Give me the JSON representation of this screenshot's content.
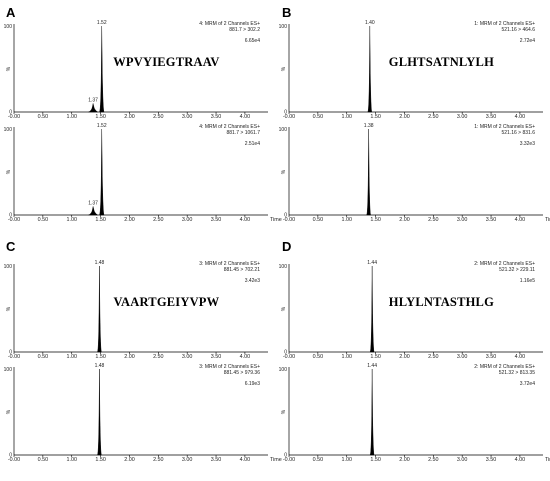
{
  "chart_data": [
    {
      "panel": "A",
      "type": "line",
      "peptide": "WPVYIEGTRAAV",
      "traces": [
        {
          "header": [
            "4: MRM of 2 Channels ES+",
            "881.7 > 302.2"
          ],
          "intensity": "6.65e4",
          "ylabel": "%",
          "ymax_label": "100",
          "xlabel": "",
          "peaks": [
            {
              "rt": 1.52,
              "height": 100,
              "width": 0.04,
              "label": "1.52"
            },
            {
              "rt": 1.37,
              "height": 10,
              "width": 0.08,
              "label": "1.37"
            }
          ]
        },
        {
          "header": [
            "4: MRM of 2 Channels ES+",
            "881.7 > 1061.7"
          ],
          "intensity": "2.51e4",
          "ylabel": "%",
          "ymax_label": "100",
          "xlabel": "Time",
          "peaks": [
            {
              "rt": 1.52,
              "height": 100,
              "width": 0.04,
              "label": "1.52"
            },
            {
              "rt": 1.37,
              "height": 10,
              "width": 0.08,
              "label": "1.37"
            }
          ]
        }
      ]
    },
    {
      "panel": "B",
      "type": "line",
      "peptide": "GLHTSATNLYLH",
      "traces": [
        {
          "header": [
            "1: MRM of 2 Channels ES+",
            "521.16 > 464.6"
          ],
          "intensity": "2.72e4",
          "ylabel": "%",
          "ymax_label": "100",
          "xlabel": "",
          "peaks": [
            {
              "rt": 1.4,
              "height": 100,
              "width": 0.035,
              "label": "1.40"
            }
          ]
        },
        {
          "header": [
            "1: MRM of 2 Channels ES+",
            "521.16 > 831.6"
          ],
          "intensity": "3.32e3",
          "ylabel": "%",
          "ymax_label": "100",
          "xlabel": "Time",
          "peaks": [
            {
              "rt": 1.38,
              "height": 100,
              "width": 0.035,
              "label": "1.38"
            }
          ]
        }
      ]
    },
    {
      "panel": "C",
      "type": "line",
      "peptide": "VAARTGEIYVPW",
      "traces": [
        {
          "header": [
            "3: MRM of 2 Channels ES+",
            "881.45 > 702.21"
          ],
          "intensity": "3.42e3",
          "ylabel": "%",
          "ymax_label": "100",
          "xlabel": "",
          "peaks": [
            {
              "rt": 1.48,
              "height": 100,
              "width": 0.035,
              "label": "1.48"
            }
          ]
        },
        {
          "header": [
            "3: MRM of 2 Channels ES+",
            "881.45 > 979.36"
          ],
          "intensity": "6.19e3",
          "ylabel": "%",
          "ymax_label": "100",
          "xlabel": "Time",
          "peaks": [
            {
              "rt": 1.48,
              "height": 100,
              "width": 0.035,
              "label": "1.48"
            }
          ]
        }
      ]
    },
    {
      "panel": "D",
      "type": "line",
      "peptide": "HLYLNTASTHLG",
      "traces": [
        {
          "header": [
            "2: MRM of 2 Channels ES+",
            "521.32 > 229.11"
          ],
          "intensity": "1.16e5",
          "ylabel": "%",
          "ymax_label": "100",
          "xlabel": "",
          "peaks": [
            {
              "rt": 1.44,
              "height": 100,
              "width": 0.035,
              "label": "1.44"
            }
          ]
        },
        {
          "header": [
            "2: MRM of 2 Channels ES+",
            "521.32 > 813.35"
          ],
          "intensity": "3.72e4",
          "ylabel": "%",
          "ymax_label": "100",
          "xlabel": "Time",
          "peaks": [
            {
              "rt": 1.44,
              "height": 100,
              "width": 0.035,
              "label": "1.44"
            }
          ]
        }
      ]
    }
  ],
  "x_axis": {
    "ticks": [
      "-0.00",
      "0.50",
      "1.00",
      "1.50",
      "2.00",
      "2.50",
      "3.00",
      "3.50",
      "4.00"
    ],
    "xlim": [
      0,
      4.4
    ]
  },
  "y_axis": {
    "ylim": [
      0,
      100
    ],
    "zero_label": "0"
  }
}
